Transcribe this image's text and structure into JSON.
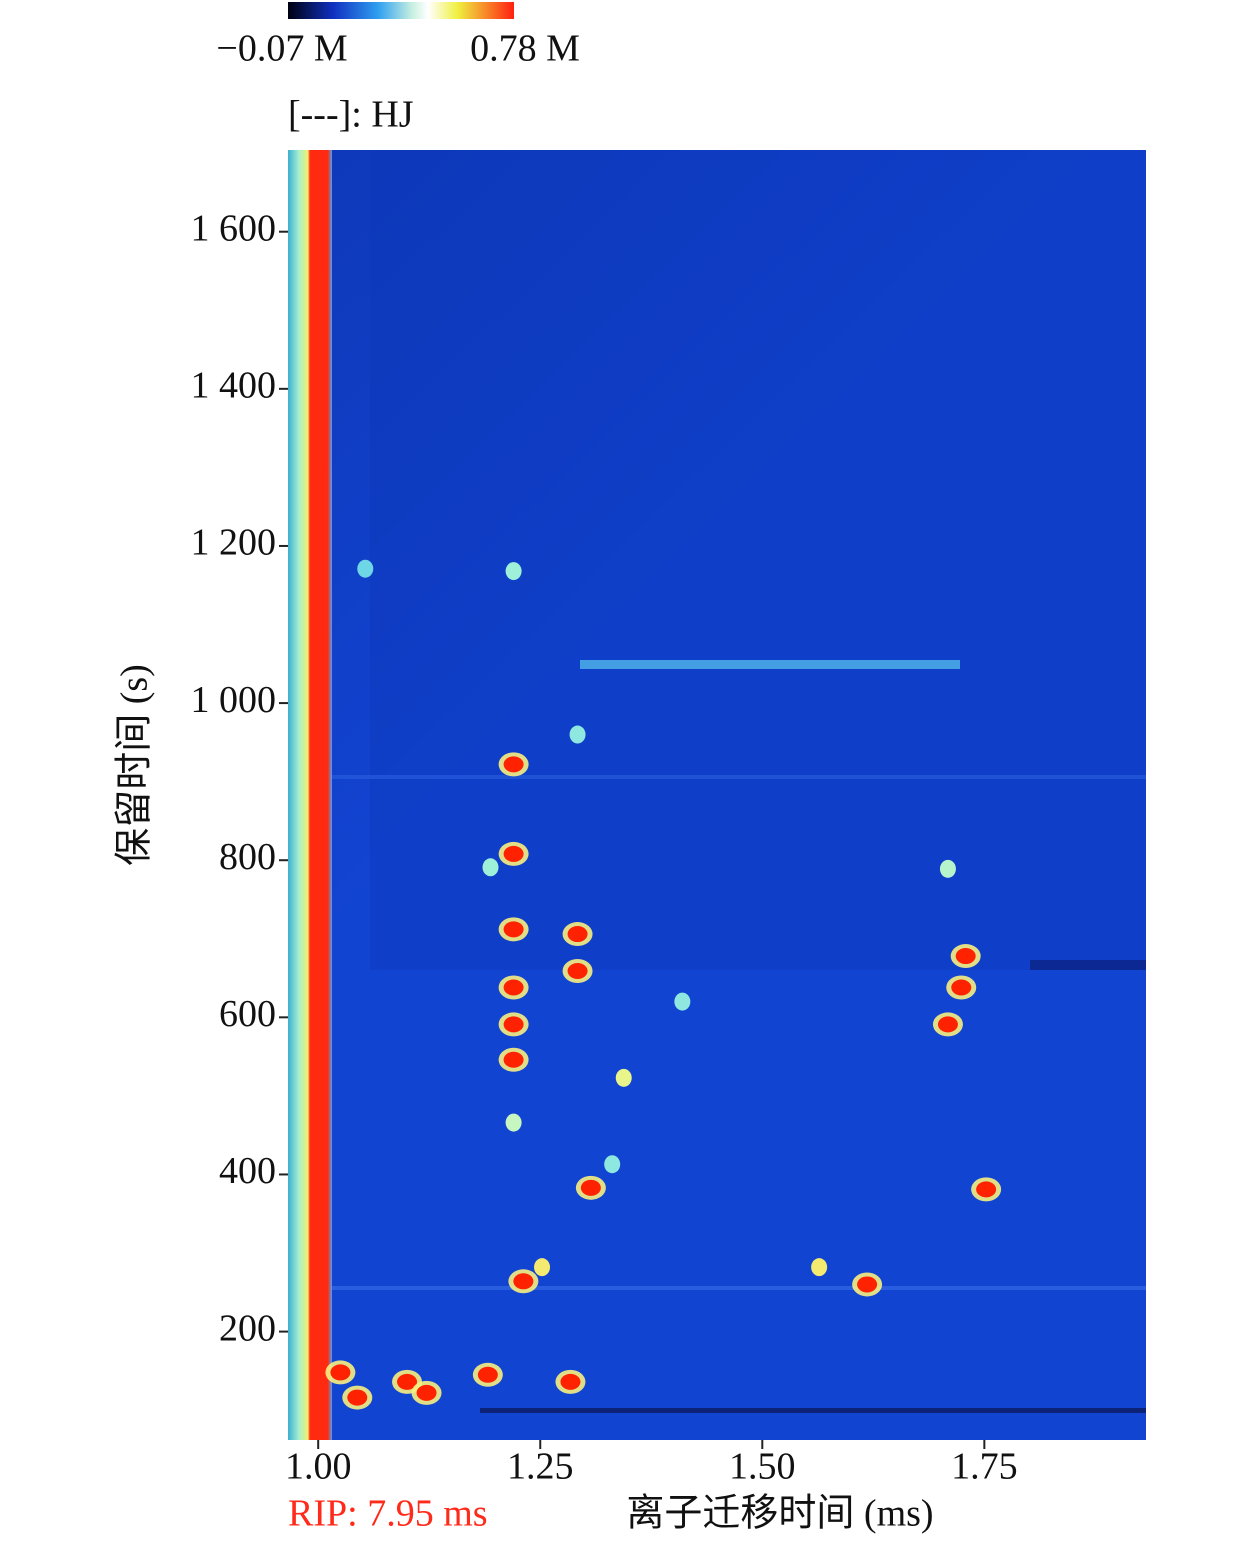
{
  "chart_data": {
    "type": "heatmap",
    "colorbar": {
      "min_label": "−0.07 M",
      "max_label": "0.78 M"
    },
    "legend": "[---]: HJ",
    "xlabel": "离子迁移时间 (ms)",
    "ylabel": "保留时间 (s)",
    "annotation": "RIP: 7.95 ms",
    "annotation_color": "#ff2a1a",
    "background": "#1244d2",
    "xlim": [
      0.966,
      1.932
    ],
    "ylim": [
      62,
      1704
    ],
    "xticks": [
      {
        "value": 1,
        "label": "1.00"
      },
      1.25,
      {
        "value": 1.5,
        "label": "1.50"
      },
      1.75
    ],
    "yticks": [
      200,
      400,
      600,
      800,
      {
        "value": 1000,
        "label": "1 000"
      },
      {
        "value": 1200,
        "label": "1 200"
      },
      {
        "value": 1400,
        "label": "1 400"
      },
      {
        "value": 1600,
        "label": "1 600"
      }
    ],
    "peaks": [
      {
        "x": 1.22,
        "y": 922,
        "color": "#ff2200"
      },
      {
        "x": 1.22,
        "y": 808,
        "color": "#ff2200"
      },
      {
        "x": 1.22,
        "y": 712,
        "color": "#ff2200"
      },
      {
        "x": 1.22,
        "y": 638,
        "color": "#ff2200"
      },
      {
        "x": 1.22,
        "y": 591,
        "color": "#ff2200"
      },
      {
        "x": 1.22,
        "y": 546,
        "color": "#ff2200"
      },
      {
        "x": 1.292,
        "y": 706,
        "color": "#ff2200"
      },
      {
        "x": 1.292,
        "y": 659,
        "color": "#ff2200"
      },
      {
        "x": 1.729,
        "y": 678,
        "color": "#ff2200"
      },
      {
        "x": 1.724,
        "y": 638,
        "color": "#ff2200"
      },
      {
        "x": 1.709,
        "y": 591,
        "color": "#ff2200"
      },
      {
        "x": 1.307,
        "y": 383,
        "color": "#ff2200"
      },
      {
        "x": 1.752,
        "y": 381,
        "color": "#ff2200"
      },
      {
        "x": 1.231,
        "y": 264,
        "color": "#ff2200"
      },
      {
        "x": 1.618,
        "y": 260,
        "color": "#ff2200"
      },
      {
        "x": 1.1,
        "y": 136,
        "color": "#ff2200"
      },
      {
        "x": 1.122,
        "y": 122,
        "color": "#ff2200"
      },
      {
        "x": 1.044,
        "y": 116,
        "color": "#ff2200"
      },
      {
        "x": 1.025,
        "y": 148,
        "color": "#ff2200"
      },
      {
        "x": 1.284,
        "y": 136,
        "color": "#ff2200"
      },
      {
        "x": 1.191,
        "y": 145,
        "color": "#ff2200"
      },
      {
        "x": 1.22,
        "y": 1168,
        "color": "#9ff0d8"
      },
      {
        "x": 1.053,
        "y": 1171,
        "color": "#6fd6e6"
      },
      {
        "x": 1.292,
        "y": 960,
        "color": "#8fe8e0"
      },
      {
        "x": 1.709,
        "y": 789,
        "color": "#b6f4cc"
      },
      {
        "x": 1.194,
        "y": 791,
        "color": "#9ff0d8"
      },
      {
        "x": 1.344,
        "y": 523,
        "color": "#e8f58a"
      },
      {
        "x": 1.41,
        "y": 620,
        "color": "#8fe8e0"
      },
      {
        "x": 1.252,
        "y": 282,
        "color": "#f4ea70"
      },
      {
        "x": 1.564,
        "y": 282,
        "color": "#f4ea70"
      },
      {
        "x": 1.331,
        "y": 413,
        "color": "#8fe8e0"
      },
      {
        "x": 1.22,
        "y": 466,
        "color": "#c8f6c0"
      }
    ]
  }
}
